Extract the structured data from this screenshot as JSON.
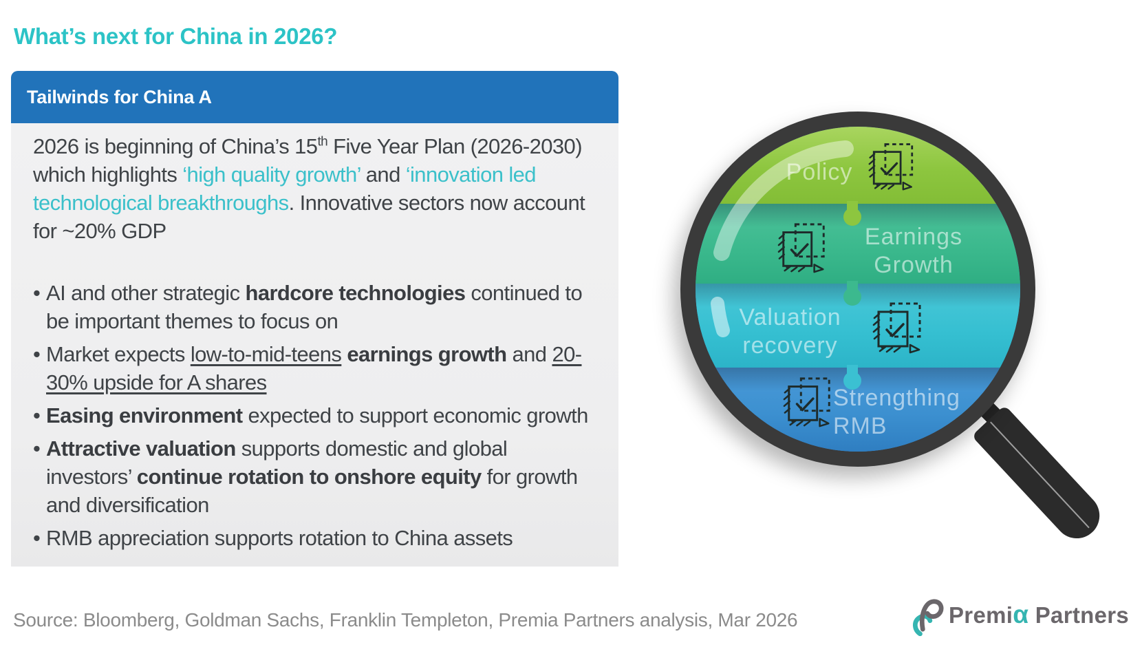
{
  "page": {
    "title": "What’s next for China in 2026?"
  },
  "panel": {
    "header": "Tailwinds for China A",
    "paragraph": [
      {
        "text": "2026 is beginning of China’s 15"
      },
      {
        "text": "th",
        "style": "sup"
      },
      {
        "text": " Five Year Plan (2026-2030) which highlights "
      },
      {
        "text": "‘high quality growth’",
        "style": "teal"
      },
      {
        "text": " and "
      },
      {
        "text": "‘innovation led technological breakthroughs",
        "style": "teal"
      },
      {
        "text": ". Innovative sectors now account for ~20% GDP"
      }
    ],
    "bullets": [
      [
        {
          "text": "AI and other strategic "
        },
        {
          "text": "hardcore technologies",
          "style": "bold"
        },
        {
          "text": " continued to be important themes to focus on"
        }
      ],
      [
        {
          "text": "Market expects "
        },
        {
          "text": "low-to-mid-teens",
          "style": "underline"
        },
        {
          "text": " "
        },
        {
          "text": "earnings growth",
          "style": "bold"
        },
        {
          "text": " and "
        },
        {
          "text": "20-30% upside for A shares",
          "style": "underline"
        }
      ],
      [
        {
          "text": "Easing environment",
          "style": "bold"
        },
        {
          "text": " expected to support economic growth"
        }
      ],
      [
        {
          "text": "Attractive valuation",
          "style": "bold"
        },
        {
          "text": " supports domestic and global investors’ "
        },
        {
          "text": "continue rotation to onshore equity",
          "style": "bold"
        },
        {
          "text": " for growth and diversification"
        }
      ],
      [
        {
          "text": "RMB appreciation supports rotation to China assets"
        }
      ]
    ]
  },
  "lens": {
    "bands": [
      {
        "label": "Policy",
        "color": "#8dc63f",
        "icon": "checklist-icon",
        "icon_side": "right"
      },
      {
        "label": "Earnings Growth",
        "color": "#3ab88c",
        "icon": "checklist-icon",
        "icon_side": "left"
      },
      {
        "label": "Valuation recovery",
        "color": "#35bfd1",
        "icon": "checklist-icon",
        "icon_side": "right"
      },
      {
        "label": "Strengthing RMB",
        "color": "#3c90d0",
        "icon": "checklist-icon",
        "icon_side": "left"
      }
    ]
  },
  "footer": {
    "source": "Source: Bloomberg, Goldman Sachs, Franklin Templeton, Premia Partners analysis, Mar 2026",
    "logo": {
      "pre": "Premi",
      "alpha": "α",
      "post": " Partners"
    }
  },
  "colors": {
    "title_teal": "#2cc3c6",
    "header_blue": "#2173ba",
    "panel_gray": "#efefef",
    "body_text": "#3f4347",
    "teal_text": "#3bc0ca",
    "rim_dark": "#3a3a3a",
    "handle_dark": "#2b2b2b",
    "source_gray": "#8b8b8b",
    "logo_gray": "#6b676b",
    "logo_teal": "#35b5b1",
    "icon_stroke": "#1e2b2a"
  }
}
